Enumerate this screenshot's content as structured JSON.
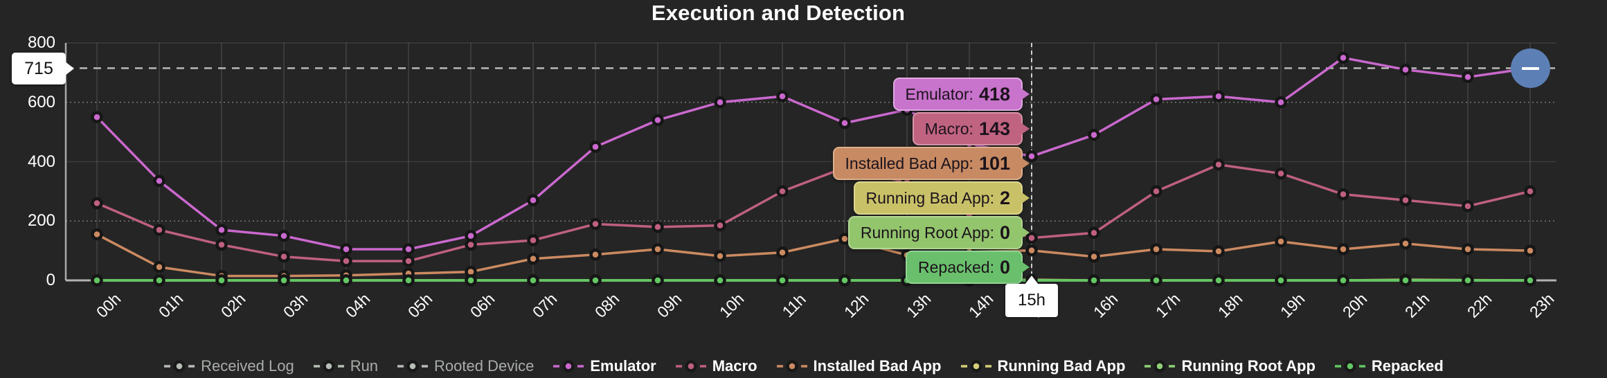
{
  "title": "Execution and Detection",
  "colors": {
    "background": "#252525",
    "axis": "#c9ccc9",
    "grid": "rgba(255,255,255,0.10)",
    "grid_dotted": "rgba(255,255,255,0.38)",
    "threshold_line": "#b9b9b9",
    "crosshair": "#e8e8e8",
    "marker_ring": "#161616",
    "collapse_button": "#5c80b6",
    "disabled_legend": "#b7beb7",
    "disabled_legend_text": "#a9ada9"
  },
  "y_axis": {
    "ticks": [
      0,
      200,
      400,
      600,
      800
    ],
    "dotted_ticks": [
      200,
      600
    ]
  },
  "x_axis": {
    "labels": [
      "00h",
      "01h",
      "02h",
      "03h",
      "04h",
      "05h",
      "06h",
      "07h",
      "08h",
      "09h",
      "10h",
      "11h",
      "12h",
      "13h",
      "14h",
      "15h",
      "16h",
      "17h",
      "18h",
      "19h",
      "20h",
      "21h",
      "22h",
      "23h"
    ]
  },
  "threshold": {
    "label": "715",
    "value": 715
  },
  "crosshair": {
    "hour_label": "15h",
    "hour_index": 15
  },
  "collapse_button": {
    "icon": "minus-icon"
  },
  "tooltip": {
    "items": [
      {
        "label": "Emulator:",
        "value": "418",
        "bg": "#c873cc",
        "border": "#e0aae1"
      },
      {
        "label": "Macro:",
        "value": "143",
        "bg": "#bf6380",
        "border": "#d795a8"
      },
      {
        "label": "Installed Bad App:",
        "value": "101",
        "bg": "#c78a62",
        "border": "#dcb08c"
      },
      {
        "label": "Running Bad App:",
        "value": "2",
        "bg": "#c9c167",
        "border": "#ded792"
      },
      {
        "label": "Running Root App:",
        "value": "0",
        "bg": "#92c56c",
        "border": "#b4d996"
      },
      {
        "label": "Repacked:",
        "value": "0",
        "bg": "#69bf6b",
        "border": "#93d494"
      }
    ]
  },
  "legend": [
    {
      "label": "Received Log",
      "color": "#b7beb7",
      "disabled": true
    },
    {
      "label": "Run",
      "color": "#b7beb7",
      "disabled": true
    },
    {
      "label": "Rooted Device",
      "color": "#b7beb7",
      "disabled": true
    },
    {
      "label": "Emulator",
      "color": "#ca68ce",
      "disabled": false
    },
    {
      "label": "Macro",
      "color": "#bf607f",
      "disabled": false
    },
    {
      "label": "Installed Bad App",
      "color": "#cc8a61",
      "disabled": false
    },
    {
      "label": "Running Bad App",
      "color": "#d6cf79",
      "disabled": false
    },
    {
      "label": "Running Root App",
      "color": "#8fd076",
      "disabled": false
    },
    {
      "label": "Repacked",
      "color": "#63c763",
      "disabled": false
    }
  ],
  "chart_data": {
    "type": "line",
    "title": "Execution and Detection",
    "categories": [
      "00h",
      "01h",
      "02h",
      "03h",
      "04h",
      "05h",
      "06h",
      "07h",
      "08h",
      "09h",
      "10h",
      "11h",
      "12h",
      "13h",
      "14h",
      "15h",
      "16h",
      "17h",
      "18h",
      "19h",
      "20h",
      "21h",
      "22h",
      "23h"
    ],
    "ylim": [
      0,
      800
    ],
    "grid": true,
    "legend_position": "bottom",
    "threshold": 715,
    "selected_category": "15h",
    "series": [
      {
        "name": "Received Log",
        "color": "#b7beb7",
        "hidden": true,
        "values": []
      },
      {
        "name": "Run",
        "color": "#b7beb7",
        "hidden": true,
        "values": []
      },
      {
        "name": "Rooted Device",
        "color": "#b7beb7",
        "hidden": true,
        "values": []
      },
      {
        "name": "Running Bad App",
        "color": "#d6cf79",
        "hidden": false,
        "values": [
          0,
          0,
          0,
          0,
          0,
          0,
          0,
          0,
          0,
          0,
          0,
          0,
          0,
          0,
          0,
          2,
          0,
          0,
          0,
          0,
          0,
          2,
          1,
          0
        ]
      },
      {
        "name": "Installed Bad App",
        "color": "#cc8a61",
        "hidden": false,
        "values": [
          155,
          45,
          15,
          15,
          17,
          23,
          29,
          73,
          87,
          105,
          82,
          94,
          140,
          85,
          96,
          101,
          80,
          105,
          98,
          131,
          105,
          124,
          105,
          100
        ]
      },
      {
        "name": "Running Root App",
        "color": "#8fd076",
        "hidden": false,
        "values": [
          0,
          0,
          0,
          0,
          0,
          0,
          0,
          0,
          0,
          0,
          0,
          0,
          0,
          0,
          0,
          0,
          0,
          0,
          0,
          0,
          0,
          0,
          0,
          0
        ]
      },
      {
        "name": "Repacked",
        "color": "#63c763",
        "hidden": false,
        "values": [
          0,
          0,
          0,
          0,
          0,
          0,
          0,
          0,
          0,
          0,
          0,
          0,
          0,
          0,
          0,
          0,
          0,
          0,
          0,
          0,
          0,
          0,
          0,
          0
        ]
      },
      {
        "name": "Macro",
        "color": "#bf607f",
        "hidden": false,
        "values": [
          260,
          170,
          120,
          80,
          65,
          65,
          120,
          135,
          190,
          180,
          185,
          300,
          380,
          330,
          220,
          143,
          160,
          300,
          390,
          360,
          290,
          270,
          250,
          300
        ]
      },
      {
        "name": "Emulator",
        "color": "#ca68ce",
        "hidden": false,
        "values": [
          550,
          335,
          170,
          150,
          105,
          105,
          150,
          270,
          450,
          540,
          600,
          620,
          530,
          575,
          460,
          418,
          490,
          610,
          620,
          600,
          750,
          710,
          685,
          715
        ]
      }
    ]
  }
}
